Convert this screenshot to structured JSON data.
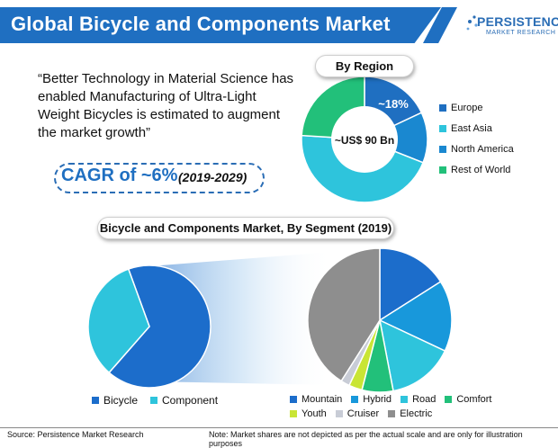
{
  "header": {
    "title": "Global Bicycle and Components Market"
  },
  "logo": {
    "main": "PERSISTENCE",
    "sub": "MARKET RESEARCH"
  },
  "quote": "“Better Technology in Material Science has enabled Manufacturing of Ultra-Light Weight Bicycles is estimated to augment the market growth”",
  "cagr": {
    "main": "CAGR of ~6%",
    "years": "(2019-2029)"
  },
  "colors": {
    "brand": "#1f6fc1",
    "europe": "#1f6fc1",
    "east_asia": "#2ec4dc",
    "north_america": "#1a88d0",
    "rest_of_world": "#22c07a",
    "bicycle": "#1c6dcb",
    "component": "#2ec4dc",
    "mountain": "#1c6dcb",
    "hybrid": "#1898db",
    "road": "#2ec4dc",
    "comfort": "#22c07a",
    "youth": "#c9e535",
    "cruiser": "#c8ccd6",
    "electric": "#8e8e8e"
  },
  "chart_data": [
    {
      "type": "pie",
      "title": "By Region",
      "center_label": "~US$ 90 Bn",
      "slice_labels": [
        "~18%",
        "",
        "",
        ""
      ],
      "categories": [
        "Europe",
        "North America",
        "East Asia",
        "Rest of World"
      ],
      "values": [
        18,
        13,
        45,
        24
      ],
      "legend_order": [
        "Europe",
        "East Asia",
        "North America",
        "Rest of World"
      ],
      "legend_placement": "right"
    },
    {
      "type": "pie",
      "title": "Bicycle and Components Market, By Segment (2019)",
      "categories": [
        "Bicycle",
        "Component"
      ],
      "values": [
        67,
        33
      ],
      "legend_placement": "bottom"
    },
    {
      "type": "pie",
      "title": "",
      "categories": [
        "Mountain",
        "Hybrid",
        "Road",
        "Comfort",
        "Youth",
        "Cruiser",
        "Electric"
      ],
      "values": [
        16,
        16,
        15,
        7,
        3,
        2,
        41
      ],
      "legend_placement": "bottom"
    }
  ],
  "footer": {
    "source": "Source: Persistence Market Research",
    "note": "Note: Market shares are not depicted as per the actual scale and are only for illustration purposes"
  }
}
